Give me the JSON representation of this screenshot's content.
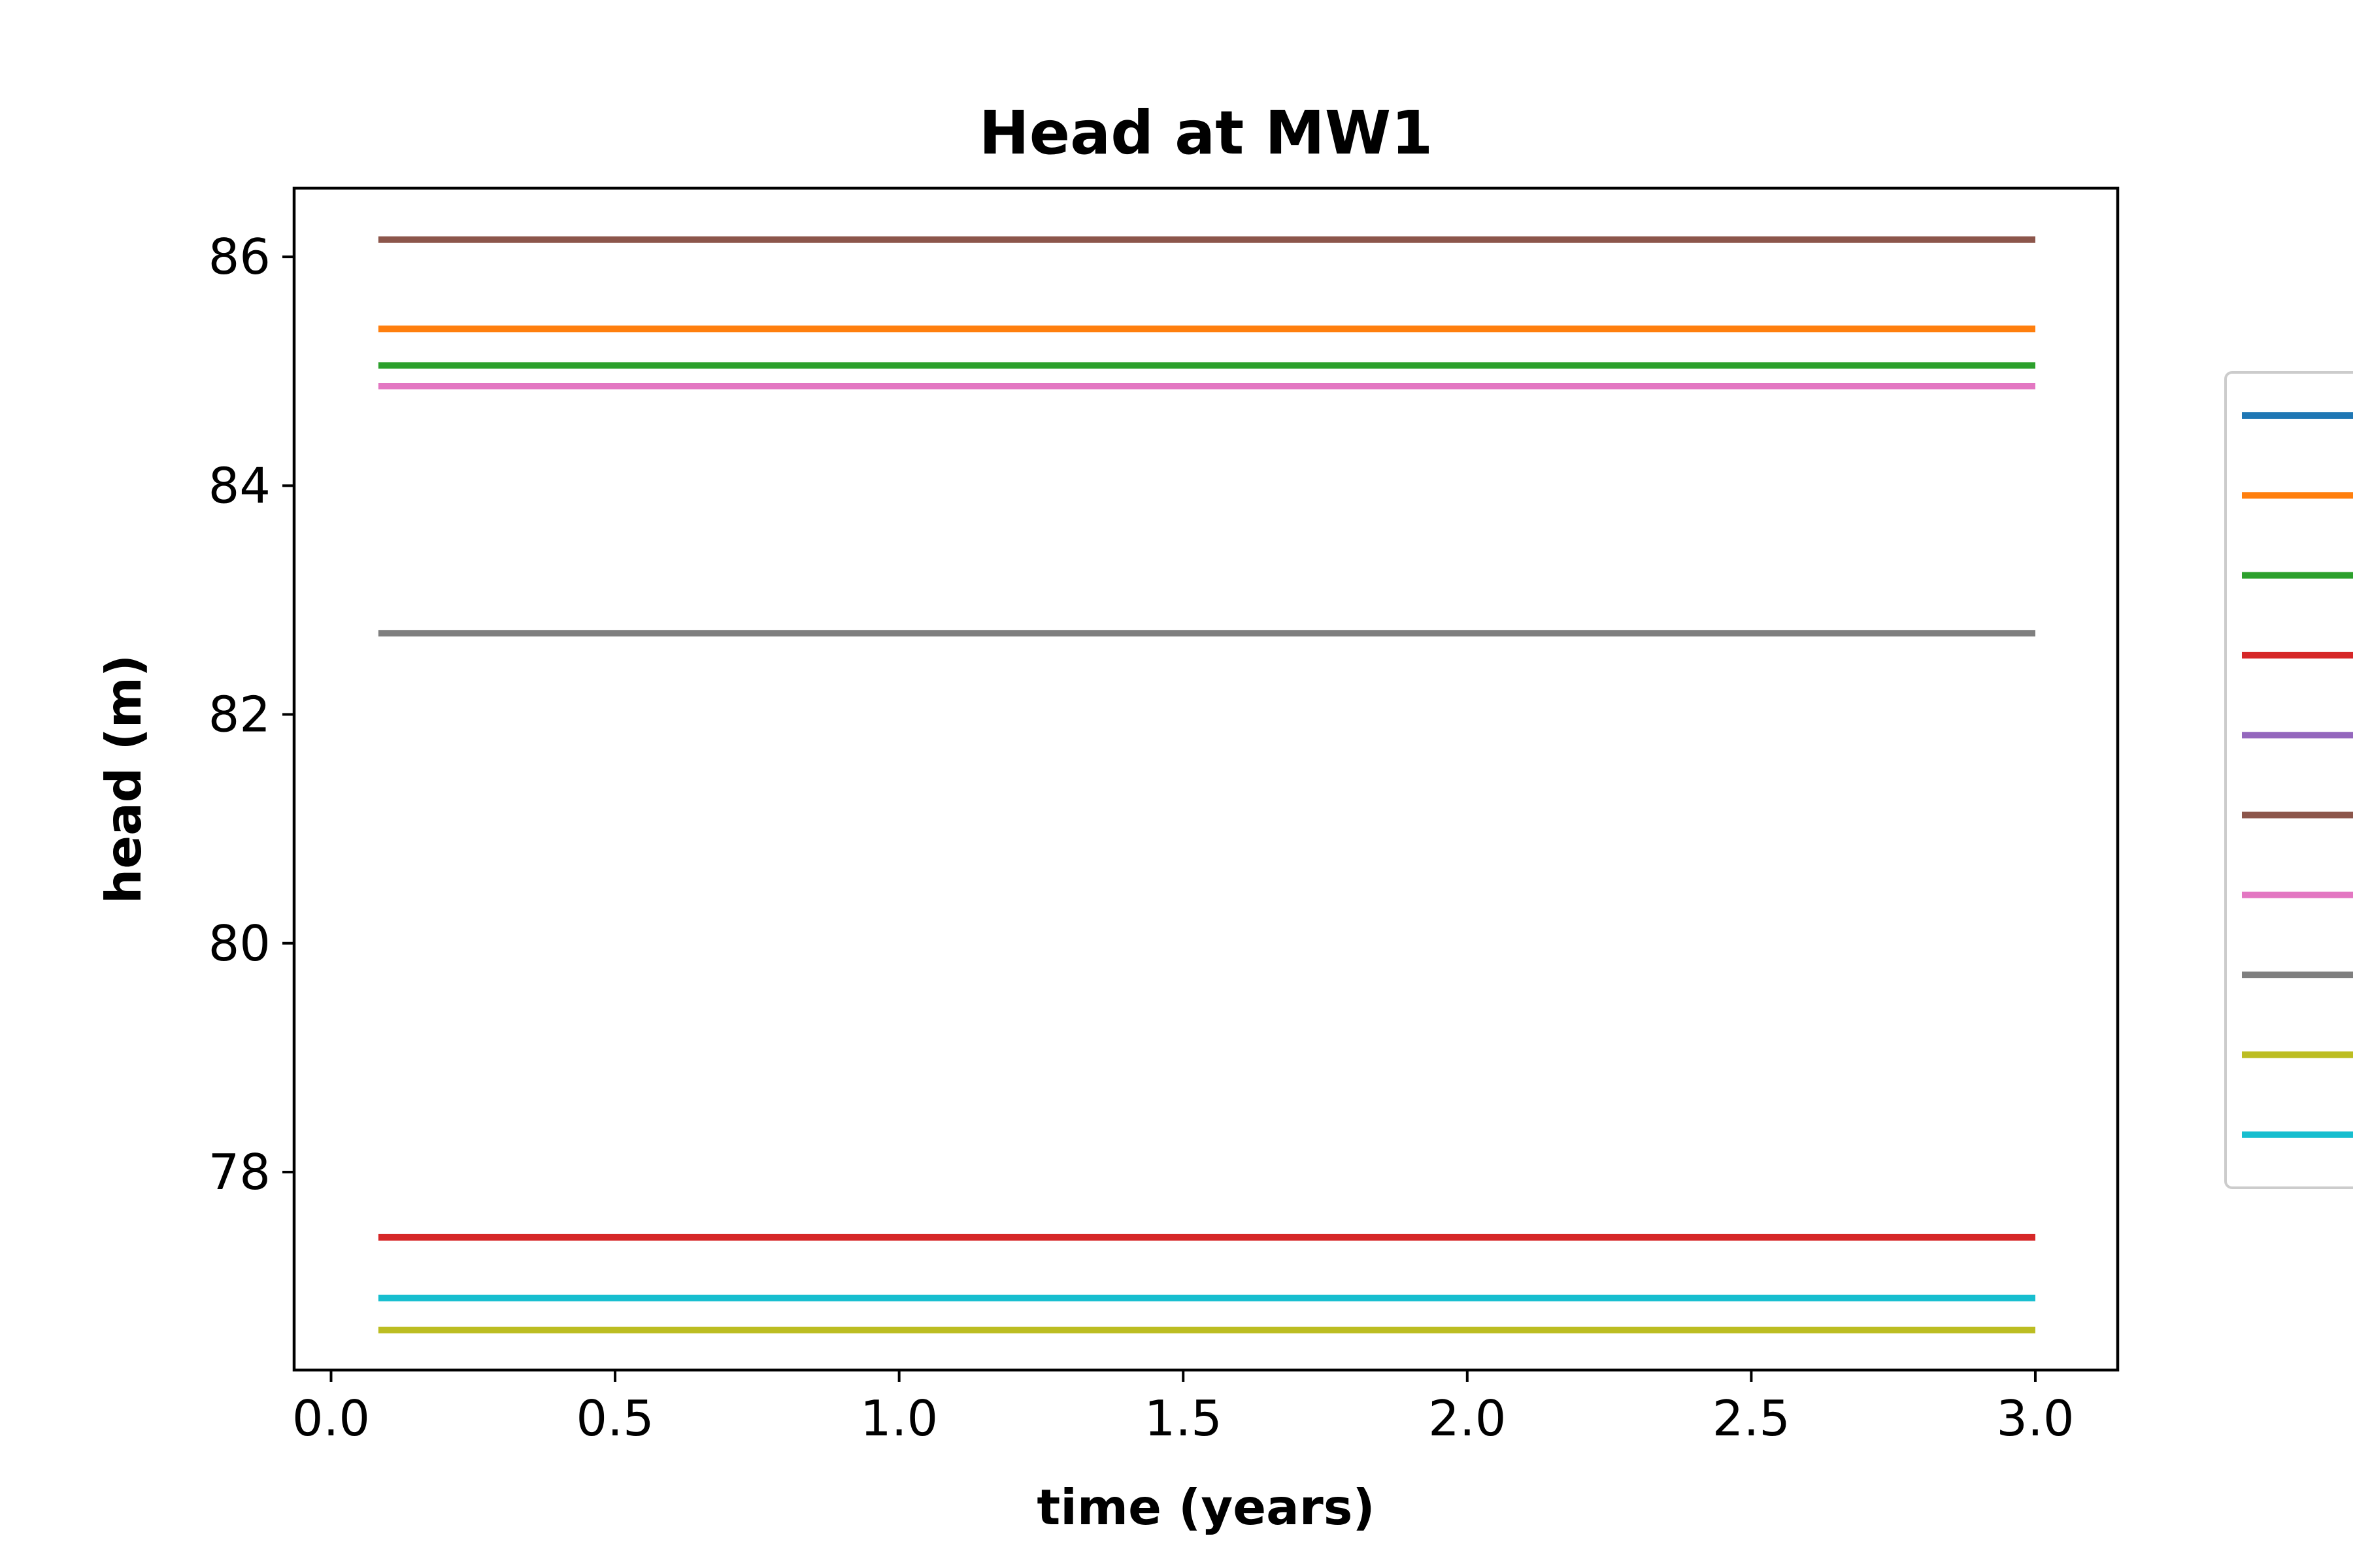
{
  "chart_data": {
    "type": "line",
    "title": "Head at MW1",
    "xlabel": "time (years)",
    "ylabel": "head (m)",
    "xlim": [
      -0.065,
      3.145
    ],
    "ylim": [
      76.27,
      86.6
    ],
    "xticks": [
      0.0,
      0.5,
      1.0,
      1.5,
      2.0,
      2.5,
      3.0
    ],
    "xtick_labels": [
      "0.0",
      "0.5",
      "1.0",
      "1.5",
      "2.0",
      "2.5",
      "3.0"
    ],
    "yticks": [
      78,
      80,
      82,
      84,
      86
    ],
    "ytick_labels": [
      "78",
      "80",
      "82",
      "84",
      "86"
    ],
    "grid": false,
    "legend_position": "right (cut off)",
    "x": [
      0.0833,
      3.0
    ],
    "series": [
      {
        "color": "#1f77b4",
        "values": [
          null,
          null
        ]
      },
      {
        "color": "#ff7f0e",
        "values": [
          85.37,
          85.37
        ]
      },
      {
        "color": "#2ca02c",
        "values": [
          85.05,
          85.05
        ]
      },
      {
        "color": "#d62728",
        "values": [
          77.43,
          77.43
        ]
      },
      {
        "color": "#9467bd",
        "values": [
          null,
          null
        ]
      },
      {
        "color": "#8c564b",
        "values": [
          86.15,
          86.15
        ]
      },
      {
        "color": "#e377c2",
        "values": [
          84.87,
          84.87
        ]
      },
      {
        "color": "#7f7f7f",
        "values": [
          82.71,
          82.71
        ]
      },
      {
        "color": "#bcbd22",
        "values": [
          76.62,
          76.62
        ]
      },
      {
        "color": "#17becf",
        "values": [
          76.9,
          76.9
        ]
      }
    ]
  }
}
